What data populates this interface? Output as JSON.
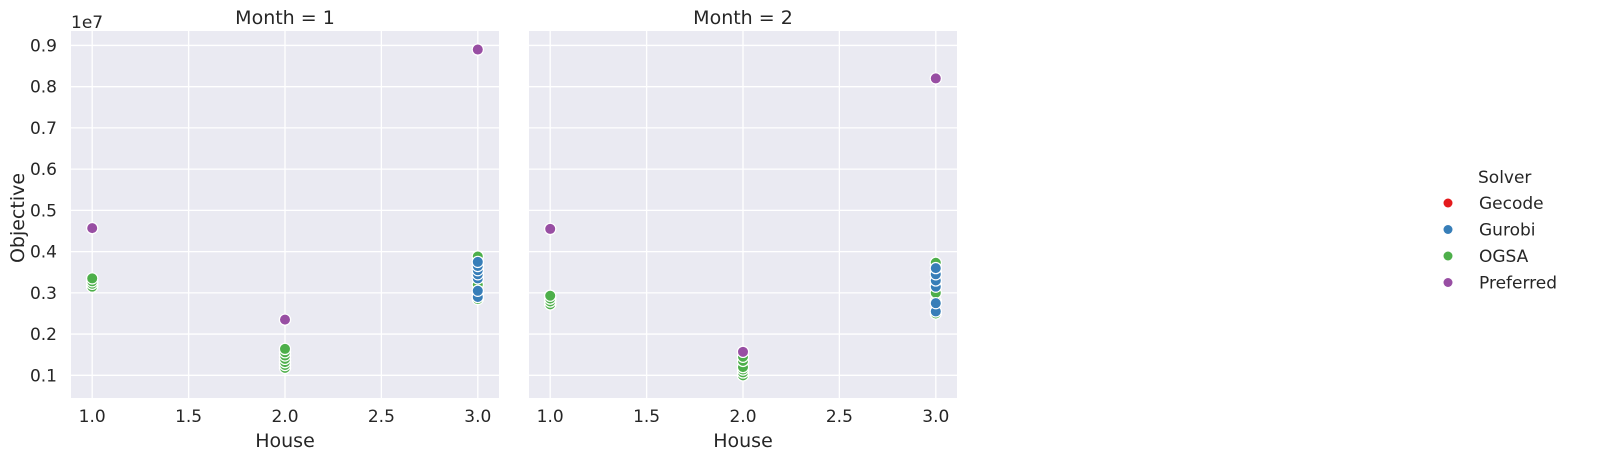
{
  "chart_data": {
    "type": "scatter",
    "legend": {
      "title": "Solver",
      "placement": "right",
      "items": [
        {
          "name": "Gecode",
          "color": "#e41a1c"
        },
        {
          "name": "Gurobi",
          "color": "#377eb8"
        },
        {
          "name": "OGSA",
          "color": "#4daf4a"
        },
        {
          "name": "Preferred",
          "color": "#984ea3"
        }
      ]
    },
    "xlabel": "House",
    "ylabel": "Objective",
    "y_offset_label": "1e7",
    "xlim": [
      0.89,
      3.11
    ],
    "ylim": [
      0.045,
      0.935
    ],
    "xticks": [
      "1.0",
      "1.5",
      "2.0",
      "2.5",
      "3.0"
    ],
    "yticks": [
      "0.1",
      "0.2",
      "0.3",
      "0.4",
      "0.5",
      "0.6",
      "0.7",
      "0.8",
      "0.9"
    ],
    "grid": true,
    "panels": [
      {
        "title": "Month = 1",
        "series": [
          {
            "name": "OGSA",
            "points": [
              {
                "x": 1.0,
                "y": 0.315
              },
              {
                "x": 1.0,
                "y": 0.322
              },
              {
                "x": 1.0,
                "y": 0.328
              },
              {
                "x": 1.0,
                "y": 0.335
              },
              {
                "x": 2.0,
                "y": 0.118
              },
              {
                "x": 2.0,
                "y": 0.125
              },
              {
                "x": 2.0,
                "y": 0.132
              },
              {
                "x": 2.0,
                "y": 0.14
              },
              {
                "x": 2.0,
                "y": 0.148
              },
              {
                "x": 2.0,
                "y": 0.156
              },
              {
                "x": 2.0,
                "y": 0.164
              },
              {
                "x": 3.0,
                "y": 0.285
              },
              {
                "x": 3.0,
                "y": 0.3
              },
              {
                "x": 3.0,
                "y": 0.32
              },
              {
                "x": 3.0,
                "y": 0.34
              },
              {
                "x": 3.0,
                "y": 0.36
              },
              {
                "x": 3.0,
                "y": 0.375
              },
              {
                "x": 3.0,
                "y": 0.388
              }
            ]
          },
          {
            "name": "Gurobi",
            "points": [
              {
                "x": 3.0,
                "y": 0.29
              },
              {
                "x": 3.0,
                "y": 0.305
              },
              {
                "x": 3.0,
                "y": 0.335
              },
              {
                "x": 3.0,
                "y": 0.345
              },
              {
                "x": 3.0,
                "y": 0.355
              },
              {
                "x": 3.0,
                "y": 0.365
              },
              {
                "x": 3.0,
                "y": 0.375
              }
            ]
          },
          {
            "name": "Preferred",
            "points": [
              {
                "x": 1.0,
                "y": 0.457
              },
              {
                "x": 2.0,
                "y": 0.235
              },
              {
                "x": 3.0,
                "y": 0.89
              }
            ]
          }
        ]
      },
      {
        "title": "Month = 2",
        "series": [
          {
            "name": "OGSA",
            "points": [
              {
                "x": 1.0,
                "y": 0.272
              },
              {
                "x": 1.0,
                "y": 0.279
              },
              {
                "x": 1.0,
                "y": 0.286
              },
              {
                "x": 1.0,
                "y": 0.293
              },
              {
                "x": 2.0,
                "y": 0.1
              },
              {
                "x": 2.0,
                "y": 0.107
              },
              {
                "x": 2.0,
                "y": 0.114
              },
              {
                "x": 2.0,
                "y": 0.12
              },
              {
                "x": 2.0,
                "y": 0.135
              },
              {
                "x": 2.0,
                "y": 0.145
              },
              {
                "x": 3.0,
                "y": 0.25
              },
              {
                "x": 3.0,
                "y": 0.28
              },
              {
                "x": 3.0,
                "y": 0.3
              },
              {
                "x": 3.0,
                "y": 0.32
              },
              {
                "x": 3.0,
                "y": 0.35
              },
              {
                "x": 3.0,
                "y": 0.373
              }
            ]
          },
          {
            "name": "Gurobi",
            "points": [
              {
                "x": 3.0,
                "y": 0.255
              },
              {
                "x": 3.0,
                "y": 0.275
              },
              {
                "x": 3.0,
                "y": 0.315
              },
              {
                "x": 3.0,
                "y": 0.33
              },
              {
                "x": 3.0,
                "y": 0.345
              },
              {
                "x": 3.0,
                "y": 0.36
              }
            ]
          },
          {
            "name": "Preferred",
            "points": [
              {
                "x": 1.0,
                "y": 0.455
              },
              {
                "x": 2.0,
                "y": 0.157
              },
              {
                "x": 3.0,
                "y": 0.82
              }
            ]
          }
        ]
      }
    ]
  }
}
